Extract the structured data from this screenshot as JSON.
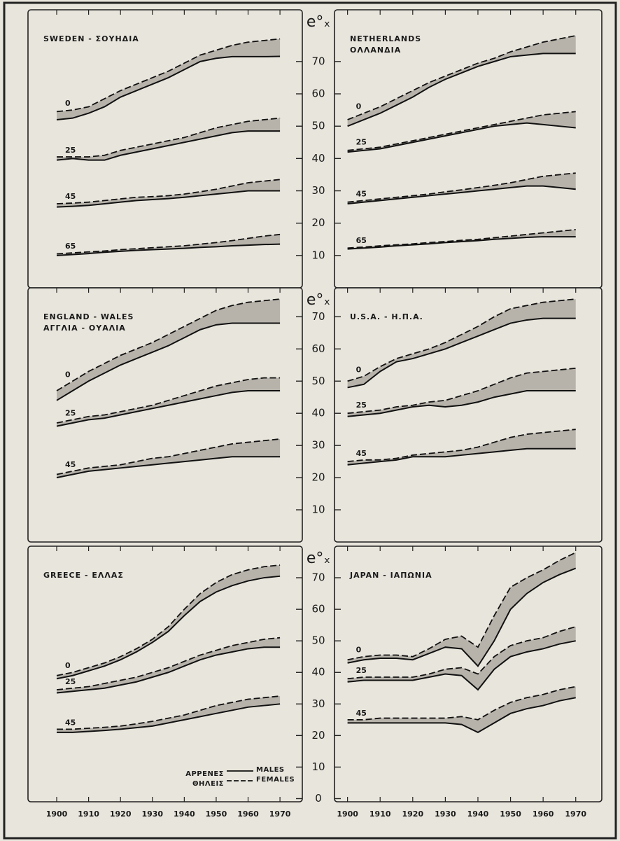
{
  "chart_data": [
    {
      "type": "line",
      "title": [
        "SWEDEN - ΣΟΥΗΔΙΑ"
      ],
      "y_label": "e°ₓ",
      "x": [
        1900,
        1905,
        1910,
        1915,
        1920,
        1925,
        1930,
        1935,
        1940,
        1945,
        1950,
        1955,
        1960,
        1965,
        1970
      ],
      "xlim": [
        1891,
        1977
      ],
      "xticks": [
        1900,
        1910,
        1920,
        1930,
        1940,
        1950,
        1960,
        1970
      ],
      "ylim": [
        0,
        86
      ],
      "yticks": [
        10,
        20,
        30,
        40,
        50,
        60,
        70
      ],
      "groups": [
        {
          "label": "0",
          "males": [
            52,
            52.5,
            54,
            56,
            59,
            61,
            63,
            65,
            67.5,
            70,
            71,
            71.5,
            71.5,
            71.5,
            71.6
          ],
          "females": [
            54.5,
            55,
            56,
            58.5,
            61,
            63,
            65,
            67,
            69.5,
            72,
            73.5,
            75,
            76,
            76.5,
            77
          ]
        },
        {
          "label": "25",
          "males": [
            39.5,
            40,
            39.5,
            39.5,
            41,
            42,
            43,
            44,
            45,
            46,
            47,
            48,
            48.5,
            48.5,
            48.5
          ],
          "females": [
            40.5,
            40.5,
            40.5,
            41,
            42.5,
            43.5,
            44.5,
            45.5,
            46.5,
            48,
            49.5,
            50.5,
            51.5,
            52,
            52.5
          ]
        },
        {
          "label": "45",
          "males": [
            25,
            25.2,
            25.5,
            26,
            26.5,
            27,
            27.3,
            27.6,
            28,
            28.5,
            29,
            29.5,
            30,
            30,
            30
          ],
          "females": [
            26,
            26.2,
            26.5,
            27,
            27.5,
            28,
            28.2,
            28.5,
            29,
            29.7,
            30.5,
            31.5,
            32.5,
            33,
            33.5
          ]
        },
        {
          "label": "65",
          "males": [
            10,
            10.3,
            10.6,
            11,
            11.3,
            11.6,
            11.8,
            12,
            12.2,
            12.5,
            12.7,
            13,
            13.2,
            13.4,
            13.5
          ],
          "females": [
            10.5,
            10.8,
            11.1,
            11.4,
            11.8,
            12.1,
            12.4,
            12.7,
            13,
            13.5,
            14,
            14.6,
            15.3,
            16,
            16.5
          ]
        }
      ]
    },
    {
      "type": "line",
      "title": [
        "NETHERLANDS",
        "ΟΛΛΑΝΔΙΑ"
      ],
      "x": [
        1900,
        1905,
        1910,
        1915,
        1920,
        1925,
        1930,
        1935,
        1940,
        1945,
        1950,
        1955,
        1960,
        1965,
        1970
      ],
      "xlim": [
        1896,
        1978
      ],
      "xticks": [
        1900,
        1910,
        1920,
        1930,
        1940,
        1950,
        1960,
        1970
      ],
      "ylim": [
        0,
        86
      ],
      "yticks": [
        10,
        20,
        30,
        40,
        50,
        60,
        70
      ],
      "groups": [
        {
          "label": "0",
          "males": [
            50,
            52,
            54,
            56.5,
            59,
            62,
            64.5,
            66.5,
            68.5,
            70,
            71.5,
            72,
            72.5,
            72.5,
            72.5
          ],
          "females": [
            52,
            54,
            56,
            58.5,
            61,
            63.5,
            65.5,
            67.5,
            69.5,
            71,
            73,
            74.5,
            76,
            77,
            78
          ]
        },
        {
          "label": "25",
          "males": [
            42,
            42.5,
            43,
            44,
            45,
            46,
            47,
            48,
            49,
            50,
            50.5,
            51,
            50.5,
            50,
            49.5
          ],
          "females": [
            42.5,
            43,
            43.5,
            44.5,
            45.5,
            46.5,
            47.5,
            48.5,
            49.5,
            50.5,
            51.5,
            52.5,
            53.5,
            54,
            54.5
          ]
        },
        {
          "label": "45",
          "males": [
            26,
            26.5,
            27,
            27.5,
            28,
            28.5,
            29,
            29.5,
            30,
            30.5,
            31,
            31.5,
            31.5,
            31,
            30.5
          ],
          "females": [
            26.5,
            27,
            27.5,
            28,
            28.5,
            29,
            29.7,
            30.3,
            31,
            31.7,
            32.5,
            33.5,
            34.5,
            35,
            35.5
          ]
        },
        {
          "label": "65",
          "males": [
            12,
            12.3,
            12.6,
            13,
            13.3,
            13.6,
            14,
            14.3,
            14.6,
            15,
            15.3,
            15.6,
            15.8,
            15.8,
            15.8
          ],
          "females": [
            12.3,
            12.6,
            13,
            13.3,
            13.6,
            14,
            14.3,
            14.7,
            15,
            15.5,
            16,
            16.5,
            17,
            17.5,
            18
          ]
        }
      ]
    },
    {
      "type": "line",
      "title": [
        "ENGLAND - WALES",
        "ΑΓΓΛΙΑ - ΟΥΑΛΙΑ"
      ],
      "y_label": "e°ₓ",
      "x": [
        1900,
        1905,
        1910,
        1915,
        1920,
        1925,
        1930,
        1935,
        1940,
        1945,
        1950,
        1955,
        1960,
        1965,
        1970
      ],
      "xlim": [
        1891,
        1977
      ],
      "xticks": [
        1900,
        1910,
        1920,
        1930,
        1940,
        1950,
        1960,
        1970
      ],
      "ylim": [
        0,
        79
      ],
      "yticks": [
        10,
        20,
        30,
        40,
        50,
        60,
        70
      ],
      "groups": [
        {
          "label": "0",
          "males": [
            44,
            47,
            50,
            52.5,
            55,
            57,
            59,
            61,
            63.5,
            66,
            67.5,
            68,
            68,
            68,
            68
          ],
          "females": [
            47,
            50,
            53,
            55.5,
            58,
            60,
            62,
            64.5,
            67,
            69.5,
            72,
            73.5,
            74.5,
            75,
            75.5
          ]
        },
        {
          "label": "25",
          "males": [
            36,
            37,
            38,
            38.5,
            39.5,
            40.5,
            41.5,
            42.5,
            43.5,
            44.5,
            45.5,
            46.5,
            47,
            47,
            47
          ],
          "females": [
            37,
            38,
            39,
            39.5,
            40.5,
            41.5,
            42.5,
            44,
            45.5,
            47,
            48.5,
            49.5,
            50.5,
            51,
            51
          ]
        },
        {
          "label": "45",
          "males": [
            20,
            21,
            22,
            22.5,
            23,
            23.5,
            24,
            24.5,
            25,
            25.5,
            26,
            26.5,
            26.5,
            26.5,
            26.5
          ],
          "females": [
            21,
            22,
            23,
            23.5,
            24,
            25,
            26,
            26.5,
            27.5,
            28.5,
            29.5,
            30.5,
            31,
            31.5,
            32
          ]
        }
      ]
    },
    {
      "type": "line",
      "title": [
        "U.S.A. - Η.Π.Α."
      ],
      "x": [
        1900,
        1905,
        1910,
        1915,
        1920,
        1925,
        1930,
        1935,
        1940,
        1945,
        1950,
        1955,
        1960,
        1965,
        1970
      ],
      "xlim": [
        1896,
        1978
      ],
      "xticks": [
        1900,
        1910,
        1920,
        1930,
        1940,
        1950,
        1960,
        1970
      ],
      "ylim": [
        0,
        79
      ],
      "yticks": [
        10,
        20,
        30,
        40,
        50,
        60,
        70
      ],
      "groups": [
        {
          "label": "0",
          "males": [
            48,
            49,
            53,
            56,
            57,
            58.5,
            60,
            62,
            64,
            66,
            68,
            69,
            69.5,
            69.5,
            69.5
          ],
          "females": [
            50,
            51.5,
            54.5,
            57,
            58.5,
            60,
            62,
            64.5,
            67,
            70,
            72.5,
            73.5,
            74.5,
            75,
            75.5
          ]
        },
        {
          "label": "25",
          "males": [
            39,
            39.5,
            40,
            41,
            42,
            42.5,
            42,
            42.5,
            43.5,
            45,
            46,
            47,
            47,
            47,
            47
          ],
          "females": [
            40,
            40.5,
            41,
            42,
            42.5,
            43.5,
            44,
            45.5,
            47,
            49,
            51,
            52.5,
            53,
            53.5,
            54
          ]
        },
        {
          "label": "45",
          "males": [
            24,
            24.5,
            25,
            25.5,
            26.5,
            26.5,
            26.5,
            27,
            27.5,
            28,
            28.5,
            29,
            29,
            29,
            29
          ],
          "females": [
            25,
            25.5,
            25.5,
            26,
            27,
            27.5,
            28,
            28.5,
            29.5,
            31,
            32.5,
            33.5,
            34,
            34.5,
            35
          ]
        }
      ]
    },
    {
      "type": "line",
      "title": [
        "GREECE - ΕΛΛΑΣ"
      ],
      "y_label": "e°ₓ",
      "x": [
        1900,
        1905,
        1910,
        1915,
        1920,
        1925,
        1930,
        1935,
        1940,
        1945,
        1950,
        1955,
        1960,
        1965,
        1970
      ],
      "xlim": [
        1891,
        1977
      ],
      "xticks": [
        1900,
        1910,
        1920,
        1930,
        1940,
        1950,
        1960,
        1970
      ],
      "ylim": [
        -1,
        80
      ],
      "yticks": [
        0,
        10,
        20,
        30,
        40,
        50,
        60,
        70
      ],
      "legend": [
        {
          "greek": "ΑΡΡΕΝΕΣ",
          "english": "MALES",
          "dashed": false
        },
        {
          "greek": "ΘΗΛΕΙΣ",
          "english": "FEMALES",
          "dashed": true
        }
      ],
      "groups": [
        {
          "label": "0",
          "males": [
            38,
            39,
            40.5,
            42,
            44,
            46.5,
            49.5,
            53,
            58,
            62.5,
            65.5,
            67.5,
            69,
            70,
            70.5
          ],
          "females": [
            39,
            40,
            41.5,
            43,
            45,
            47.5,
            50.5,
            54.5,
            60,
            65,
            68.5,
            71,
            72.5,
            73.5,
            74
          ]
        },
        {
          "label": "25",
          "males": [
            33.5,
            34,
            34.5,
            35,
            36,
            37,
            38.5,
            40,
            42,
            44,
            45.5,
            46.5,
            47.5,
            48,
            48
          ],
          "females": [
            34.5,
            35,
            35.5,
            36.5,
            37.5,
            38.5,
            40,
            41.5,
            43.5,
            45.5,
            47,
            48.5,
            49.5,
            50.5,
            51
          ]
        },
        {
          "label": "45",
          "males": [
            21,
            21,
            21.3,
            21.6,
            22,
            22.5,
            23,
            24,
            25,
            26,
            27,
            28,
            29,
            29.5,
            30
          ],
          "females": [
            22,
            22,
            22.3,
            22.6,
            23,
            23.7,
            24.5,
            25.5,
            26.5,
            28,
            29.5,
            30.5,
            31.5,
            32,
            32.5
          ]
        }
      ]
    },
    {
      "type": "line",
      "title": [
        "JAPAN - ΙΑΠΩΝΙΑ"
      ],
      "x": [
        1900,
        1905,
        1910,
        1915,
        1920,
        1925,
        1930,
        1935,
        1940,
        1945,
        1950,
        1955,
        1960,
        1965,
        1970
      ],
      "xlim": [
        1896,
        1978
      ],
      "xticks": [
        1900,
        1910,
        1920,
        1930,
        1940,
        1950,
        1960,
        1970
      ],
      "ylim": [
        -1,
        80
      ],
      "yticks": [
        0,
        10,
        20,
        30,
        40,
        50,
        60,
        70
      ],
      "groups": [
        {
          "label": "0",
          "males": [
            43,
            44,
            44.5,
            44.5,
            44,
            46,
            48,
            47.5,
            42,
            50,
            60,
            65,
            68.5,
            71,
            73
          ],
          "females": [
            44,
            45,
            45.5,
            45.5,
            45,
            47.5,
            50.5,
            51.5,
            48,
            58,
            67,
            70,
            72.5,
            75.5,
            78
          ]
        },
        {
          "label": "25",
          "males": [
            37,
            37.5,
            37.5,
            37.5,
            37.5,
            38.5,
            39.5,
            39,
            34.5,
            41,
            45,
            46.5,
            47.5,
            49,
            50
          ],
          "females": [
            38,
            38.5,
            38.5,
            38.5,
            38.5,
            39.5,
            41,
            41.5,
            39.5,
            45,
            48.5,
            50,
            51,
            53,
            54.5
          ]
        },
        {
          "label": "45",
          "males": [
            24,
            24,
            24,
            24,
            24,
            24,
            24,
            23.5,
            21,
            24,
            27,
            28.5,
            29.5,
            31,
            32
          ],
          "females": [
            25,
            25,
            25.5,
            25.5,
            25.5,
            25.5,
            25.5,
            26,
            25,
            28,
            30.5,
            32,
            33,
            34.5,
            35.5
          ]
        }
      ]
    }
  ]
}
